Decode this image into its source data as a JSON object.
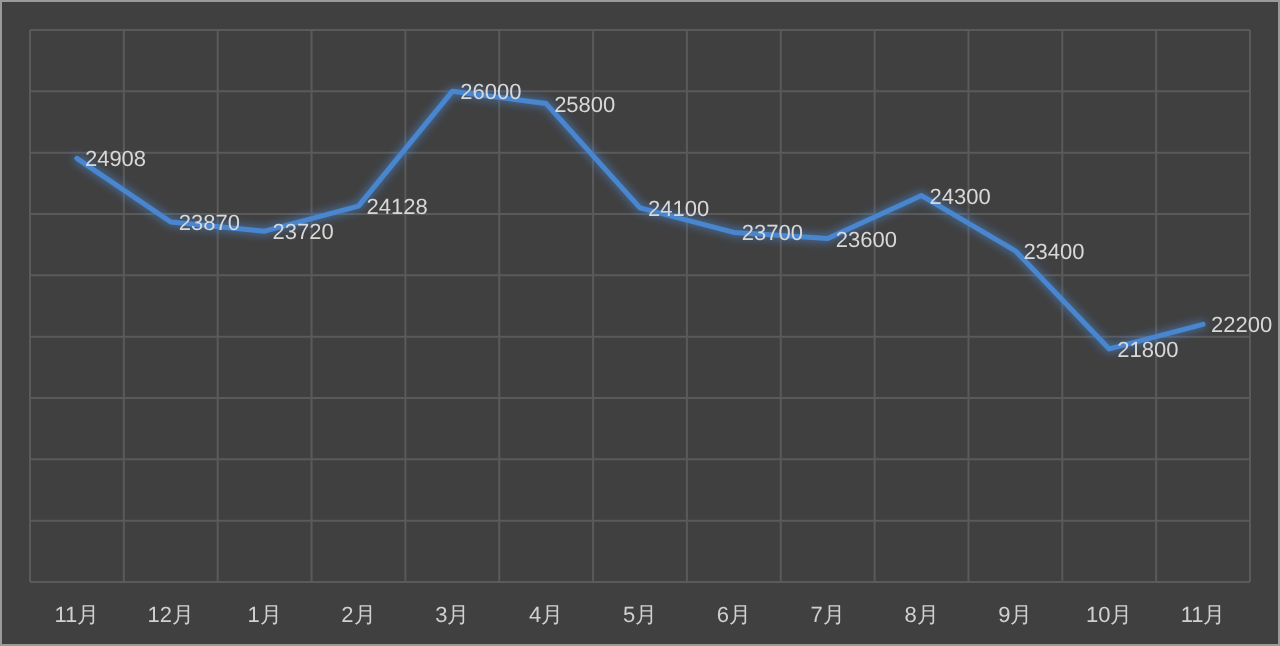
{
  "chart_data": {
    "type": "line",
    "categories": [
      "11月",
      "12月",
      "1月",
      "2月",
      "3月",
      "4月",
      "5月",
      "6月",
      "7月",
      "8月",
      "9月",
      "10月",
      "11月"
    ],
    "series": [
      {
        "color": "#4a86d0",
        "values": [
          24908,
          23870,
          23720,
          24128,
          26000,
          25800,
          24100,
          23700,
          23600,
          24300,
          23400,
          21800,
          22200
        ]
      }
    ],
    "ylim": [
      18000,
      27000
    ],
    "yticks": [
      {
        "value": 18000,
        "label": null
      },
      {
        "value": 19000,
        "label": null
      },
      {
        "value": 20000,
        "label": null
      },
      {
        "value": 21000,
        "label": null
      },
      {
        "value": 22000,
        "label": null
      },
      {
        "value": 23000,
        "label": null
      },
      {
        "value": 24000,
        "label": null
      },
      {
        "value": 25000,
        "label": null
      },
      {
        "value": 26000,
        "label": null
      },
      {
        "value": 27000,
        "label": null
      }
    ],
    "tick_labels": "x",
    "grid": true,
    "data_labels": true,
    "marker": "none",
    "line_style": "solid"
  }
}
